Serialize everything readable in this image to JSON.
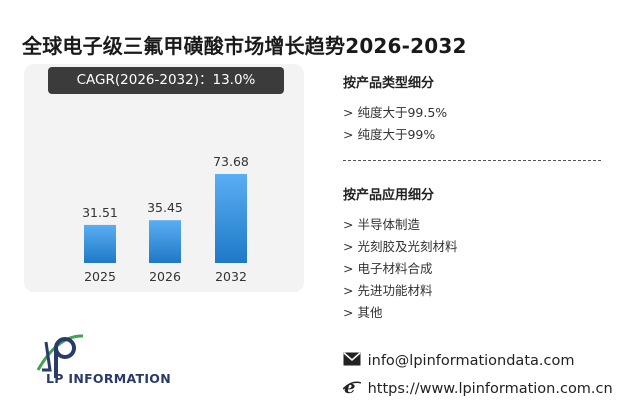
{
  "title": "全球电子级三氟甲磺酸市场增长趋势2026-2032",
  "cagr_label": "CAGR(2026-2032)：13.0%",
  "chart_data": {
    "type": "bar",
    "categories": [
      "2025",
      "2026",
      "2032"
    ],
    "values": [
      31.51,
      35.45,
      73.68
    ],
    "value_labels": [
      "31.51",
      "35.45",
      "73.68"
    ],
    "bar_color_top": "#5aaef2",
    "bar_color_bottom": "#1f79c8"
  },
  "product_type": {
    "heading": "按产品类型细分",
    "items": [
      "> 纯度大于99.5%",
      "> 纯度大于99%"
    ]
  },
  "application": {
    "heading": "按产品应用细分",
    "items": [
      "> 半导体制造",
      "> 光刻胶及光刻材料",
      "> 电子材料合成",
      "> 先进功能材料",
      "> 其他"
    ]
  },
  "contact": {
    "email": "info@lpinformationdata.com",
    "website": "https://www.lpinformation.com.cn"
  },
  "brand": {
    "logo_text": "LP INFORMATION",
    "watermark_text": "LP INFORMATION"
  },
  "colors": {
    "badge_bg": "#3b3b3b",
    "panel_bg": "#f3f3f3",
    "logo_blue": "#2a3a6a",
    "logo_green": "#3fa34d"
  }
}
